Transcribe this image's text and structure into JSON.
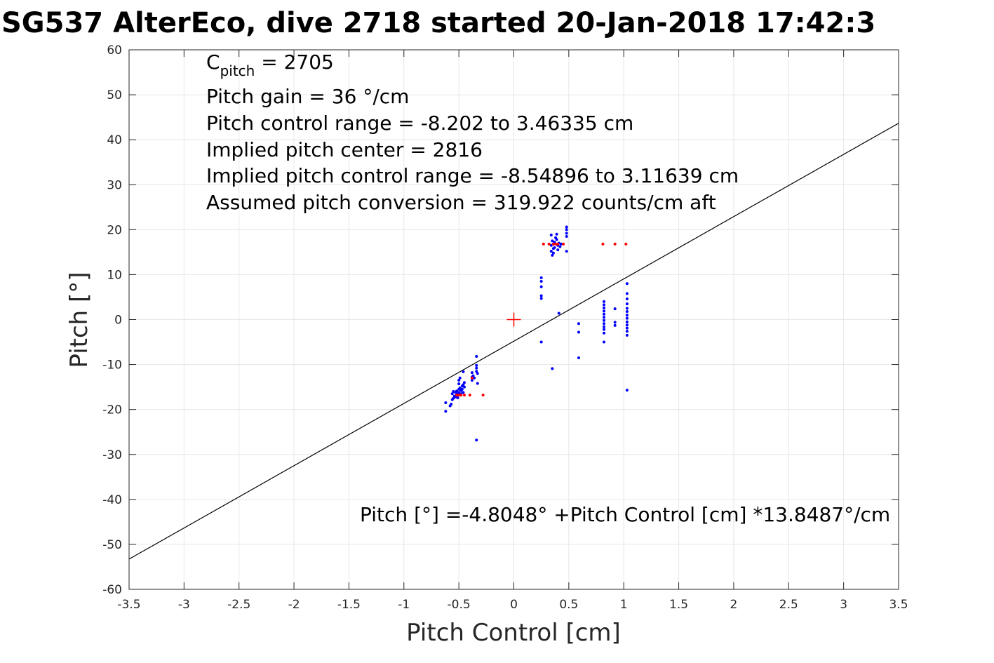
{
  "chart_data": {
    "type": "scatter",
    "title": "SG537 AlterEco, dive 2718 started 20-Jan-2018 17:42:3",
    "xlabel": "Pitch Control [cm]",
    "ylabel": "Pitch [°]",
    "xlim": [
      -3.5,
      3.5
    ],
    "ylim": [
      -60,
      60
    ],
    "xticks": [
      "-3.5",
      "-3",
      "-2.5",
      "-2",
      "-1.5",
      "-1",
      "-0.5",
      "0",
      "0.5",
      "1",
      "1.5",
      "2",
      "2.5",
      "3",
      "3.5"
    ],
    "xtick_values": [
      -3.5,
      -3,
      -2.5,
      -2,
      -1.5,
      -1,
      -0.5,
      0,
      0.5,
      1,
      1.5,
      2,
      2.5,
      3,
      3.5
    ],
    "yticks": [
      "60",
      "50",
      "40",
      "30",
      "20",
      "10",
      "0",
      "-10",
      "-20",
      "-30",
      "-40",
      "-50",
      "-60"
    ],
    "ytick_values": [
      60,
      50,
      40,
      30,
      20,
      10,
      0,
      -10,
      -20,
      -30,
      -40,
      -50,
      -60
    ],
    "grid": true,
    "annotations": {
      "c_pitch_main": "C",
      "c_pitch_sub": "pitch",
      "c_pitch_value": " = 2705",
      "pitch_gain": "Pitch gain = 36 °/cm",
      "control_range": "Pitch control range = -8.202 to 3.46335 cm",
      "implied_center": "Implied pitch center = 2816",
      "implied_range": "Implied pitch control range = -8.54896 to 3.11639 cm",
      "conversion": "Assumed pitch conversion = 319.922 counts/cm aft",
      "fit_equation": "Pitch [°] =-4.8048° +Pitch Control [cm] *13.8487°/cm"
    },
    "colors": {
      "fit_line": "#000000",
      "measured": "#0000ff",
      "reference": "#ff0000",
      "grid": "#e6e6e6",
      "axes": "#262626"
    },
    "fit_line": {
      "intercept": -4.8048,
      "slope": 13.8487
    },
    "center_marker": {
      "x": 0,
      "y": 0
    },
    "series": [
      {
        "color": "#0000ff",
        "points": [
          [
            -0.62,
            -20.4
          ],
          [
            -0.62,
            -18.5
          ],
          [
            -0.58,
            -19.2
          ],
          [
            -0.57,
            -18.8
          ],
          [
            -0.56,
            -17.8
          ],
          [
            -0.56,
            -16.5
          ],
          [
            -0.55,
            -17.5
          ],
          [
            -0.55,
            -16.0
          ],
          [
            -0.54,
            -17.0
          ],
          [
            -0.53,
            -16.2
          ],
          [
            -0.53,
            -17.2
          ],
          [
            -0.52,
            -16.8
          ],
          [
            -0.52,
            -15.9
          ],
          [
            -0.51,
            -16.5
          ],
          [
            -0.51,
            -17.4
          ],
          [
            -0.5,
            -15.5
          ],
          [
            -0.5,
            -16.2
          ],
          [
            -0.5,
            -13.5
          ],
          [
            -0.5,
            -14.3
          ],
          [
            -0.49,
            -16.8
          ],
          [
            -0.49,
            -15.2
          ],
          [
            -0.49,
            -13.0
          ],
          [
            -0.48,
            -15.8
          ],
          [
            -0.48,
            -16.5
          ],
          [
            -0.47,
            -14.8
          ],
          [
            -0.47,
            -15.5
          ],
          [
            -0.46,
            -14.5
          ],
          [
            -0.46,
            -16.2
          ],
          [
            -0.46,
            -11.6
          ],
          [
            -0.45,
            -15.0
          ],
          [
            -0.45,
            -14.0
          ],
          [
            -0.38,
            -11.8
          ],
          [
            -0.38,
            -12.8
          ],
          [
            -0.38,
            -13.5
          ],
          [
            -0.37,
            -12.5
          ],
          [
            -0.36,
            -13.0
          ],
          [
            -0.34,
            -8.2
          ],
          [
            -0.34,
            -10.2
          ],
          [
            -0.34,
            -10.8
          ],
          [
            -0.34,
            -11.5
          ],
          [
            -0.33,
            -12.0
          ],
          [
            -0.33,
            -14.2
          ],
          [
            -0.34,
            -26.8
          ],
          [
            0.25,
            9.3
          ],
          [
            0.25,
            8.5
          ],
          [
            0.25,
            7.3
          ],
          [
            0.25,
            5.3
          ],
          [
            0.25,
            4.7
          ],
          [
            0.25,
            -5.0
          ],
          [
            0.34,
            18.8
          ],
          [
            0.34,
            16.5
          ],
          [
            0.34,
            15.2
          ],
          [
            0.35,
            17.5
          ],
          [
            0.35,
            14.3
          ],
          [
            0.36,
            16.8
          ],
          [
            0.36,
            15.8
          ],
          [
            0.36,
            14.8
          ],
          [
            0.37,
            16.0
          ],
          [
            0.37,
            17.2
          ],
          [
            0.38,
            18.2
          ],
          [
            0.39,
            19.0
          ],
          [
            0.39,
            17.8
          ],
          [
            0.4,
            16.5
          ],
          [
            0.4,
            15.5
          ],
          [
            0.41,
            17.0
          ],
          [
            0.42,
            16.2
          ],
          [
            0.43,
            16.8
          ],
          [
            0.48,
            20.6
          ],
          [
            0.48,
            20.0
          ],
          [
            0.48,
            19.2
          ],
          [
            0.48,
            18.5
          ],
          [
            0.48,
            15.2
          ],
          [
            0.35,
            -10.9
          ],
          [
            0.41,
            1.4
          ],
          [
            0.59,
            -0.9
          ],
          [
            0.59,
            -2.8
          ],
          [
            0.59,
            -8.5
          ],
          [
            0.82,
            4.0
          ],
          [
            0.82,
            3.3
          ],
          [
            0.82,
            2.6
          ],
          [
            0.82,
            1.9
          ],
          [
            0.82,
            1.2
          ],
          [
            0.82,
            0.5
          ],
          [
            0.82,
            -0.2
          ],
          [
            0.82,
            -0.9
          ],
          [
            0.82,
            -1.6
          ],
          [
            0.82,
            -2.2
          ],
          [
            0.82,
            -3.0
          ],
          [
            0.82,
            -5.0
          ],
          [
            0.92,
            2.4
          ],
          [
            0.92,
            -0.6
          ],
          [
            0.92,
            -1.3
          ],
          [
            1.03,
            8.0
          ],
          [
            1.03,
            5.8
          ],
          [
            1.03,
            4.6
          ],
          [
            1.03,
            3.5
          ],
          [
            1.03,
            2.5
          ],
          [
            1.03,
            1.8
          ],
          [
            1.03,
            1.0
          ],
          [
            1.03,
            0.3
          ],
          [
            1.03,
            -0.5
          ],
          [
            1.03,
            -1.2
          ],
          [
            1.03,
            -1.9
          ],
          [
            1.03,
            -2.6
          ],
          [
            1.03,
            -3.5
          ],
          [
            1.03,
            -15.7
          ]
        ]
      },
      {
        "color": "#ff0000",
        "points": [
          [
            -0.52,
            -16.8
          ],
          [
            -0.5,
            -16.8
          ],
          [
            -0.48,
            -16.8
          ],
          [
            -0.45,
            -16.8
          ],
          [
            -0.4,
            -16.8
          ],
          [
            -0.38,
            -13.0
          ],
          [
            -0.28,
            -16.8
          ],
          [
            0.27,
            16.8
          ],
          [
            0.32,
            16.8
          ],
          [
            0.36,
            16.8
          ],
          [
            0.38,
            16.8
          ],
          [
            0.4,
            16.8
          ],
          [
            0.45,
            16.8
          ],
          [
            0.81,
            16.8
          ],
          [
            0.92,
            16.8
          ],
          [
            1.02,
            16.8
          ]
        ]
      }
    ]
  }
}
